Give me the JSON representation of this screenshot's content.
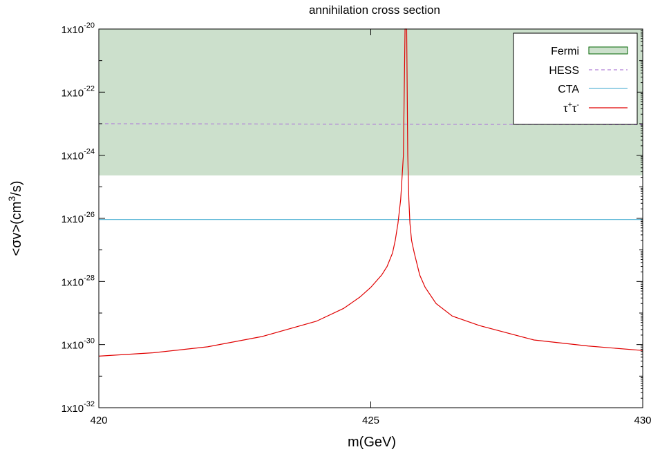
{
  "chart_data": {
    "type": "line",
    "title": "annihilation cross section",
    "xlabel": "m(GeV)",
    "ylabel": {
      "pre": "<σv>(cm",
      "sup": "3",
      "post": "/s)"
    },
    "xlim": [
      420,
      430
    ],
    "ylim": [
      1e-32,
      1e-20
    ],
    "yscale": "log",
    "x_ticks": [
      {
        "value": 420,
        "label": "420"
      },
      {
        "value": 425,
        "label": "425"
      },
      {
        "value": 430,
        "label": "430"
      }
    ],
    "y_ticks": [
      {
        "exp": -20,
        "base": "1x10",
        "sup": "-20"
      },
      {
        "exp": -22,
        "base": "1x10",
        "sup": "-22"
      },
      {
        "exp": -24,
        "base": "1x10",
        "sup": "-24"
      },
      {
        "exp": -26,
        "base": "1x10",
        "sup": "-26"
      },
      {
        "exp": -28,
        "base": "1x10",
        "sup": "-28"
      },
      {
        "exp": -30,
        "base": "1x10",
        "sup": "-30"
      },
      {
        "exp": -32,
        "base": "1x10",
        "sup": "-32"
      }
    ],
    "grid": false,
    "legend_position": "top-right",
    "legend": [
      {
        "key": "fermi",
        "label": "Fermi"
      },
      {
        "key": "hess",
        "label": "HESS"
      },
      {
        "key": "cta",
        "label": "CTA"
      },
      {
        "key": "tau",
        "label_parts": [
          "τ",
          "+",
          "τ",
          "-"
        ]
      }
    ],
    "colors": {
      "fermi_fill": "#cce0cc",
      "fermi_stroke": "#006400",
      "hess": "#b07fd8",
      "cta": "#5fb8d8",
      "tau": "#e00000"
    },
    "series": [
      {
        "key": "fermi",
        "style": "band",
        "y_lower": 2.3e-25,
        "y_upper": 1e-20
      },
      {
        "key": "hess",
        "style": "dashed",
        "x": [
          420,
          430
        ],
        "y": [
          1e-23,
          9.3e-24
        ]
      },
      {
        "key": "cta",
        "style": "solid",
        "x": [
          420,
          430
        ],
        "y": [
          9.2e-27,
          9.2e-27
        ]
      },
      {
        "key": "tau",
        "style": "solid",
        "x": [
          420,
          421,
          422,
          423,
          424,
          424.5,
          424.8,
          425.0,
          425.2,
          425.3,
          425.4,
          425.45,
          425.5,
          425.55,
          425.6,
          425.63,
          425.66,
          425.68,
          425.7,
          425.72,
          425.75,
          425.8,
          425.9,
          426.0,
          426.2,
          426.5,
          427,
          428,
          429,
          430
        ],
        "y": [
          4.3e-31,
          5.5e-31,
          8.5e-31,
          1.8e-30,
          5.5e-30,
          1.4e-29,
          3.2e-29,
          6.5e-29,
          1.6e-28,
          3e-28,
          8e-28,
          2e-27,
          7e-27,
          4e-26,
          1e-24,
          1e-20,
          1e-20,
          1e-24,
          4e-26,
          7e-27,
          2e-27,
          8e-28,
          1.6e-28,
          6.5e-29,
          2e-29,
          8e-30,
          4e-30,
          1.4e-30,
          9e-31,
          6.5e-31
        ]
      }
    ]
  }
}
